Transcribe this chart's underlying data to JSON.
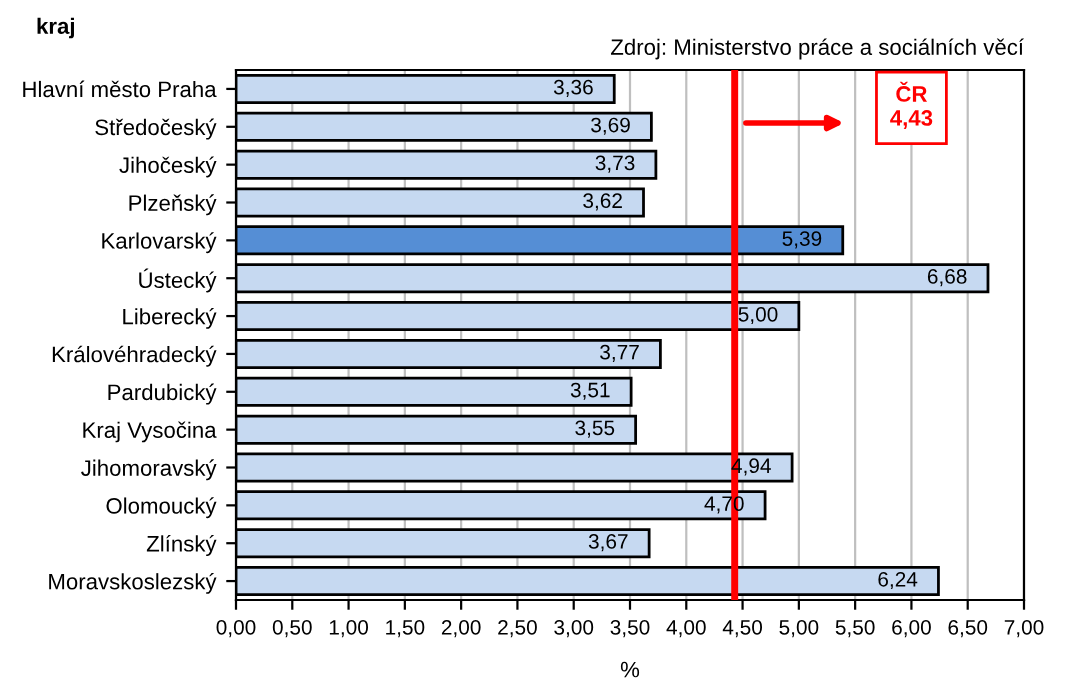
{
  "chart_data": {
    "type": "bar",
    "orientation": "horizontal",
    "ylabel": "kraj",
    "xlabel": "%",
    "categories": [
      "Hlavní město Praha",
      "Středočeský",
      "Jihočeský",
      "Plzeňský",
      "Karlovarský",
      "Ústecký",
      "Liberecký",
      "Královéhradecký",
      "Pardubický",
      "Kraj Vysočina",
      "Jihomoravský",
      "Olomoucký",
      "Zlínský",
      "Moravskoslezský"
    ],
    "values": [
      3.36,
      3.69,
      3.73,
      3.62,
      5.39,
      6.68,
      5.0,
      3.77,
      3.51,
      3.55,
      4.94,
      4.7,
      3.67,
      6.24
    ],
    "colors": [
      "#c6d9f1",
      "#c6d9f1",
      "#c6d9f1",
      "#c6d9f1",
      "#558ed5",
      "#c6d9f1",
      "#c6d9f1",
      "#c6d9f1",
      "#c6d9f1",
      "#c6d9f1",
      "#c6d9f1",
      "#c6d9f1",
      "#c6d9f1",
      "#c6d9f1"
    ],
    "value_labels": [
      "3,36",
      "3,69",
      "3,73",
      "3,62",
      "5,39",
      "6,68",
      "5,00",
      "3,77",
      "3,51",
      "3,55",
      "4,94",
      "4,70",
      "3,67",
      "6,24"
    ],
    "xlim": [
      0,
      7
    ],
    "xticks": [
      {
        "value": 0,
        "label": "0,00"
      },
      {
        "value": 0.5,
        "label": "0,50"
      },
      {
        "value": 1,
        "label": "1,00"
      },
      {
        "value": 1.5,
        "label": "1,50"
      },
      {
        "value": 2,
        "label": "2,00"
      },
      {
        "value": 2.5,
        "label": "2,50"
      },
      {
        "value": 3,
        "label": "3,00"
      },
      {
        "value": 3.5,
        "label": "3,50"
      },
      {
        "value": 4,
        "label": "4,00"
      },
      {
        "value": 4.5,
        "label": "4,50"
      },
      {
        "value": 5,
        "label": "5,00"
      },
      {
        "value": 5.5,
        "label": "5,50"
      },
      {
        "value": 6,
        "label": "6,00"
      },
      {
        "value": 6.5,
        "label": "6,50"
      },
      {
        "value": 7,
        "label": "7,00"
      }
    ],
    "ref_lines": [
      {
        "axis": "x",
        "value": 4.43,
        "label": "ČR\n4,43",
        "color": "#ff0000"
      }
    ],
    "annotations": [
      "Zdroj: Ministerstvo práce a sociálních věcí"
    ],
    "grid": "x",
    "legend": false
  }
}
